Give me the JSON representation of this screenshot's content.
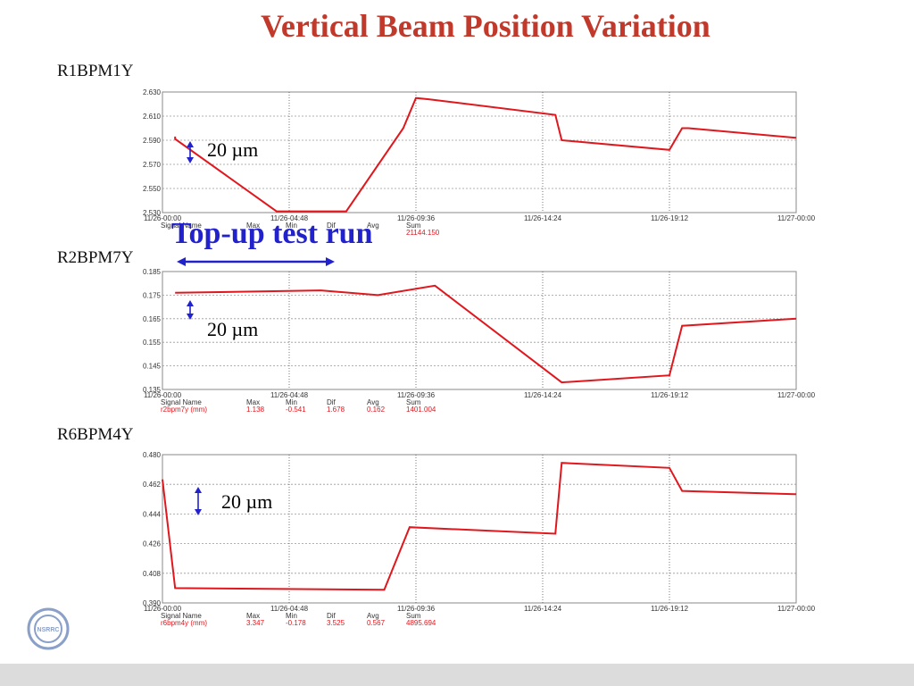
{
  "slide": {
    "title": "Vertical Beam Position Variation"
  },
  "annotation": {
    "topup_label": "Top-up test run"
  },
  "colors": {
    "trace": "#e0171d",
    "title": "#c0392b",
    "arrow": "#2222cc",
    "grid": "#999999"
  },
  "logo": {
    "icon": "nsrrc-logo-icon",
    "text": "NSRRC"
  },
  "chart_data": [
    {
      "type": "line",
      "label": "R1BPM1Y",
      "scale_text": "20 µm",
      "ylim": [
        2.53,
        2.63
      ],
      "yticks": [
        "2.630",
        "2.610",
        "2.590",
        "2.570",
        "2.550",
        "2.530"
      ],
      "xticks": [
        "11/26-00:00",
        "11/26-04:48",
        "11/26-09:36",
        "11/26-14:24",
        "11/26-19:12",
        "11/27-00:00"
      ],
      "grid": true,
      "legend": {
        "headers": [
          "Signal Name",
          "Max",
          "Min",
          "Dif",
          "Avg",
          "Sum"
        ],
        "values": [
          "",
          "",
          "",
          "",
          "",
          "21144.150"
        ]
      },
      "series": [
        {
          "values": [
            [
              0.02,
              2.593
            ],
            [
              0.02,
              2.591
            ],
            [
              0.18,
              2.531
            ],
            [
              0.29,
              2.531
            ],
            [
              0.38,
              2.6
            ],
            [
              0.4,
              2.625
            ],
            [
              0.42,
              2.624
            ],
            [
              0.62,
              2.611
            ],
            [
              0.63,
              2.59
            ],
            [
              0.65,
              2.589
            ],
            [
              0.8,
              2.582
            ],
            [
              0.82,
              2.6
            ],
            [
              0.83,
              2.6
            ],
            [
              1.0,
              2.592
            ]
          ]
        }
      ]
    },
    {
      "type": "line",
      "label": "R2BPM7Y",
      "scale_text": "20 µm",
      "ylim": [
        0.135,
        0.185
      ],
      "yticks": [
        "0.185",
        "0.175",
        "0.165",
        "0.155",
        "0.145",
        "0.135"
      ],
      "xticks": [
        "11/26-00:00",
        "11/26-04:48",
        "11/26-09:36",
        "11/26-14:24",
        "11/26-19:12",
        "11/27-00:00"
      ],
      "grid": true,
      "legend": {
        "headers": [
          "Signal Name",
          "Max",
          "Min",
          "Dif",
          "Avg",
          "Sum"
        ],
        "values": [
          "r2bpm7y (mm)",
          "1.138",
          "-0.541",
          "1.678",
          "0.162",
          "1401.004"
        ]
      },
      "series": [
        {
          "values": [
            [
              0.02,
              0.176
            ],
            [
              0.25,
              0.177
            ],
            [
              0.34,
              0.175
            ],
            [
              0.43,
              0.179
            ],
            [
              0.63,
              0.138
            ],
            [
              0.8,
              0.141
            ],
            [
              0.82,
              0.162
            ],
            [
              1.0,
              0.165
            ]
          ]
        }
      ]
    },
    {
      "type": "line",
      "label": "R6BPM4Y",
      "scale_text": "20 µm",
      "ylim": [
        0.39,
        0.48
      ],
      "yticks": [
        "0.480",
        "0.462",
        "0.444",
        "0.426",
        "0.408",
        "0.390"
      ],
      "xticks": [
        "11/26-00:00",
        "11/26-04:48",
        "11/26-09:36",
        "11/26-14:24",
        "11/26-19:12",
        "11/27-00:00"
      ],
      "grid": true,
      "legend": {
        "headers": [
          "Signal Name",
          "Max",
          "Min",
          "Dif",
          "Avg",
          "Sum"
        ],
        "values": [
          "r6bpm4y (mm)",
          "3.347",
          "-0.178",
          "3.525",
          "0.567",
          "4895.694"
        ]
      },
      "series": [
        {
          "values": [
            [
              0.0,
              0.465
            ],
            [
              0.02,
              0.399
            ],
            [
              0.35,
              0.398
            ],
            [
              0.39,
              0.436
            ],
            [
              0.62,
              0.432
            ],
            [
              0.63,
              0.475
            ],
            [
              0.8,
              0.472
            ],
            [
              0.82,
              0.458
            ],
            [
              1.0,
              0.456
            ]
          ]
        }
      ]
    }
  ]
}
